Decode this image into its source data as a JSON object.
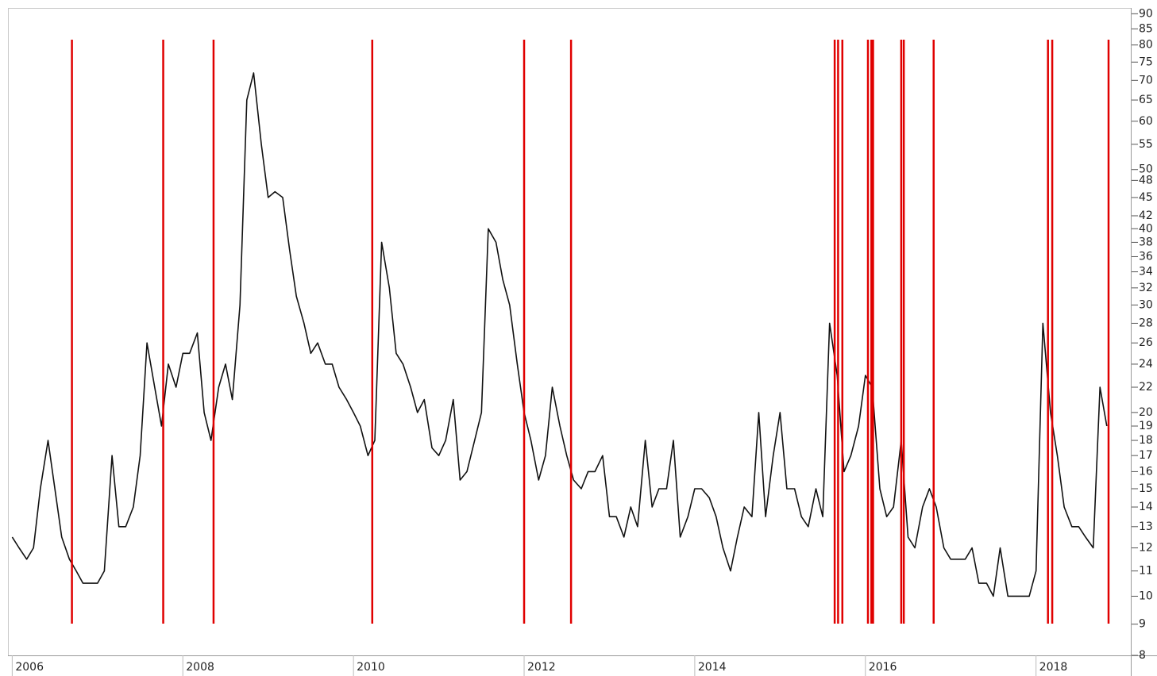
{
  "chart_data": {
    "type": "line",
    "log_scale": true,
    "grid": false,
    "xlim": [
      2005.95,
      2019.12
    ],
    "xticks": [
      2006,
      2008,
      2010,
      2012,
      2014,
      2016,
      2018
    ],
    "ylim": [
      8,
      92
    ],
    "yticks": [
      8,
      9,
      10,
      11,
      12,
      13,
      14,
      15,
      16,
      17,
      18,
      19,
      20,
      22,
      24,
      26,
      28,
      30,
      32,
      34,
      36,
      38,
      40,
      42,
      45,
      48,
      50,
      55,
      60,
      65,
      70,
      75,
      80,
      85,
      90
    ],
    "x": [
      2006,
      2006.08,
      2006.17,
      2006.25,
      2006.33,
      2006.42,
      2006.5,
      2006.58,
      2006.67,
      2006.75,
      2006.83,
      2006.92,
      2007,
      2007.08,
      2007.17,
      2007.25,
      2007.33,
      2007.42,
      2007.5,
      2007.58,
      2007.67,
      2007.75,
      2007.83,
      2007.92,
      2008,
      2008.08,
      2008.17,
      2008.25,
      2008.33,
      2008.42,
      2008.5,
      2008.58,
      2008.67,
      2008.75,
      2008.83,
      2008.92,
      2009,
      2009.08,
      2009.17,
      2009.25,
      2009.33,
      2009.42,
      2009.5,
      2009.58,
      2009.67,
      2009.75,
      2009.83,
      2009.92,
      2010,
      2010.08,
      2010.17,
      2010.25,
      2010.33,
      2010.42,
      2010.5,
      2010.58,
      2010.67,
      2010.75,
      2010.83,
      2010.92,
      2011,
      2011.08,
      2011.17,
      2011.25,
      2011.33,
      2011.42,
      2011.5,
      2011.58,
      2011.67,
      2011.75,
      2011.83,
      2011.92,
      2012,
      2012.08,
      2012.17,
      2012.25,
      2012.33,
      2012.42,
      2012.5,
      2012.58,
      2012.67,
      2012.75,
      2012.83,
      2012.92,
      2013,
      2013.08,
      2013.17,
      2013.25,
      2013.33,
      2013.42,
      2013.5,
      2013.58,
      2013.67,
      2013.75,
      2013.83,
      2013.92,
      2014,
      2014.08,
      2014.17,
      2014.25,
      2014.33,
      2014.42,
      2014.5,
      2014.58,
      2014.67,
      2014.75,
      2014.83,
      2014.92,
      2015,
      2015.08,
      2015.17,
      2015.25,
      2015.33,
      2015.42,
      2015.5,
      2015.58,
      2015.67,
      2015.75,
      2015.83,
      2015.92,
      2016,
      2016.08,
      2016.17,
      2016.25,
      2016.33,
      2016.42,
      2016.5,
      2016.58,
      2016.67,
      2016.75,
      2016.83,
      2016.92,
      2017,
      2017.08,
      2017.17,
      2017.25,
      2017.33,
      2017.42,
      2017.5,
      2017.58,
      2017.67,
      2017.75,
      2017.83,
      2017.92,
      2018,
      2018.08,
      2018.17,
      2018.25,
      2018.33,
      2018.42,
      2018.5,
      2018.58,
      2018.67,
      2018.75,
      2018.83
    ],
    "series": [
      {
        "color": "#111111",
        "values": [
          12.5,
          12,
          11.5,
          12,
          15,
          18,
          15,
          12.5,
          11.5,
          11,
          10.5,
          10.5,
          10.5,
          11,
          17,
          13,
          13,
          14,
          17,
          26,
          22,
          19,
          24,
          22,
          25,
          25,
          27,
          20,
          18,
          22,
          24,
          21,
          30,
          65,
          72,
          55,
          45,
          46,
          45,
          37,
          31,
          28,
          25,
          26,
          24,
          24,
          22,
          21,
          20,
          19,
          17,
          18,
          38,
          32,
          25,
          24,
          22,
          20,
          21,
          17.5,
          17,
          18,
          21,
          15.5,
          16,
          18,
          20,
          40,
          38,
          33,
          30,
          24,
          20,
          18,
          15.5,
          17,
          22,
          19,
          17,
          15.5,
          15,
          16,
          16,
          17,
          13.5,
          13.5,
          12.5,
          14,
          13,
          18,
          14,
          15,
          15,
          18,
          12.5,
          13.5,
          15,
          15,
          14.5,
          13.5,
          12,
          11,
          12.5,
          14,
          13.5,
          20,
          13.5,
          17,
          20,
          15,
          15,
          13.5,
          13,
          15,
          13.5,
          28,
          23,
          16,
          17,
          19,
          23,
          22,
          15,
          13.5,
          14,
          18,
          12.5,
          12,
          14,
          15,
          14,
          12,
          11.5,
          11.5,
          11.5,
          12,
          10.5,
          10.5,
          10,
          12,
          10,
          10,
          10,
          10,
          11,
          28,
          20,
          17,
          14,
          13,
          13,
          12.5,
          12,
          22,
          19
        ]
      }
    ],
    "events": [
      2006.7,
      2007.77,
      2008.36,
      2010.22,
      2012.0,
      2012.55,
      2015.64,
      2015.68,
      2015.73,
      2016.03,
      2016.07,
      2016.09,
      2016.42,
      2016.45,
      2016.8,
      2018.14,
      2018.19,
      2018.85
    ],
    "event_color": "#e00000"
  }
}
